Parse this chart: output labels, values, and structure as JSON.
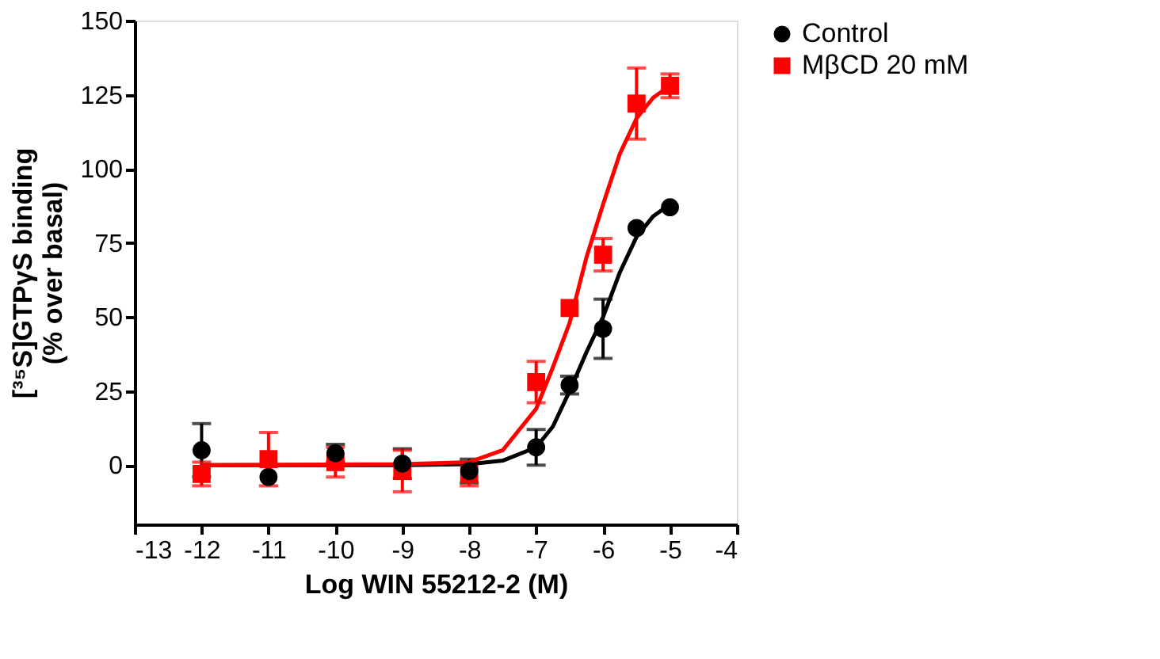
{
  "chart_data": {
    "type": "scatter",
    "xlabel": "Log WIN 55212-2 (M)",
    "ylabel": "[³⁵S]GTPγS binding\n(% over basal)",
    "x": [
      -12,
      -11,
      -10,
      -9,
      -8,
      -7,
      -6.5,
      -6,
      -5.5,
      -5
    ],
    "series": [
      {
        "name": "Control",
        "color": "#000000",
        "marker": "circle",
        "values": [
          5,
          -4,
          4,
          0.5,
          -2,
          6,
          27,
          46,
          80,
          87
        ],
        "errors": [
          9,
          null,
          3,
          5,
          4,
          6,
          3,
          10,
          null,
          null
        ]
      },
      {
        "name": "MβCD 20 mM",
        "color": "#ff0000",
        "marker": "square",
        "values": [
          -3,
          2,
          1,
          -2,
          -3,
          28,
          53,
          71,
          122,
          128
        ],
        "errors": [
          4,
          9,
          5,
          7,
          4,
          7,
          null,
          5.5,
          12,
          4
        ]
      },
      {
        "type": "line",
        "color": "#000000",
        "x": [
          -12,
          -9,
          -8,
          -7.5,
          -7,
          -6.75,
          -6.5,
          -6.25,
          -6,
          -5.75,
          -5.5,
          -5.25,
          -5
        ],
        "values": [
          0,
          0,
          0.3,
          1.5,
          6,
          13,
          25,
          38,
          50,
          65,
          77,
          84,
          88
        ]
      },
      {
        "type": "line",
        "color": "#ff0000",
        "x": [
          -12,
          -9,
          -8,
          -7.5,
          -7,
          -6.75,
          -6.5,
          -6.25,
          -6,
          -5.75,
          -5.5,
          -5.25,
          -5
        ],
        "values": [
          0,
          0.3,
          1,
          5,
          19,
          33,
          48,
          70,
          88,
          105,
          117,
          124,
          128
        ]
      }
    ],
    "xlim": [
      -13,
      -4
    ],
    "xticks": [
      -13,
      -12,
      -11,
      -10,
      -9,
      -8,
      -7,
      -6,
      -5,
      -4
    ],
    "ylim": [
      -20,
      150
    ],
    "yticks": [
      0,
      25,
      50,
      75,
      100,
      125,
      150
    ],
    "grid": false,
    "legend": "top right",
    "line_style": "solid"
  }
}
